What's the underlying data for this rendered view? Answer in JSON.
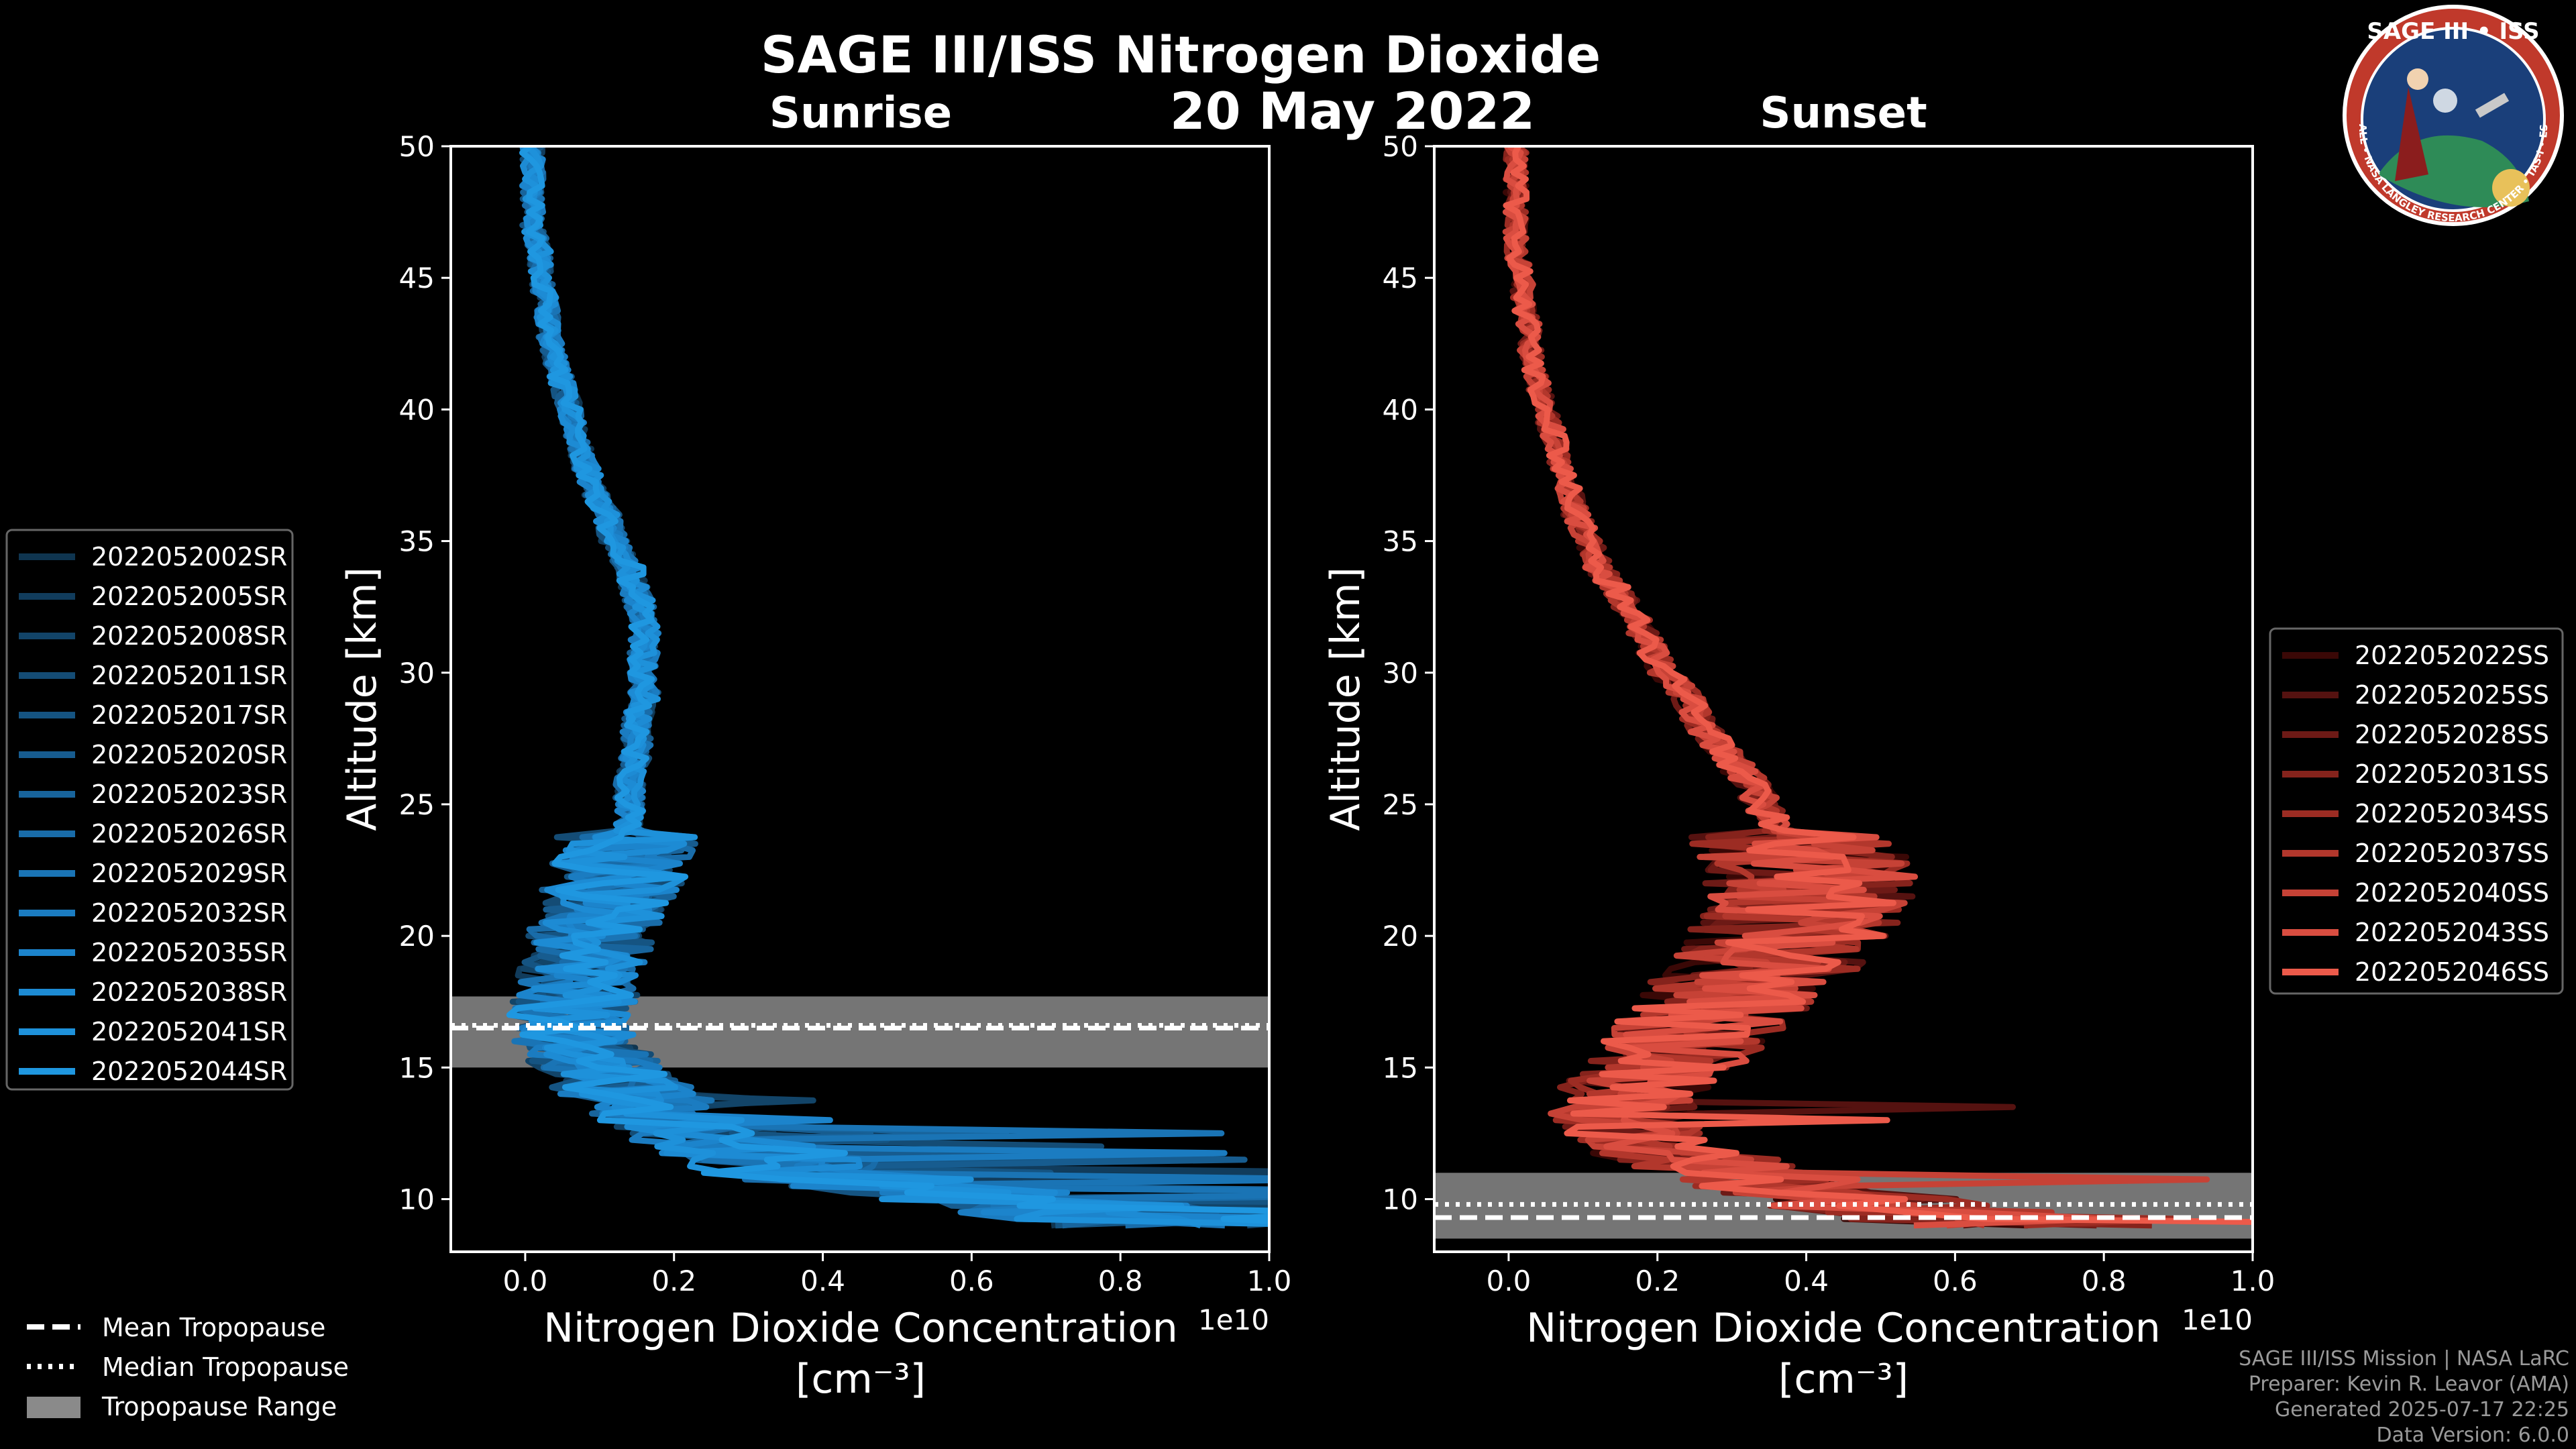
{
  "title": "SAGE III/ISS Nitrogen Dioxide",
  "date": "20 May 2022",
  "logo": {
    "name": "SAGE III • ISS",
    "fine_print": "BALL • NASA LANGLEY RESEARCH CENTER • TAS-I • ESA",
    "colors": {
      "ring": "#c0392b",
      "field": "#1a3f7a",
      "gold": "#e8c15a"
    }
  },
  "credits": [
    "SAGE III/ISS Mission | NASA LaRC",
    "Preparer: Kevin R. Leavor (AMA)",
    "Generated 2025-07-17 22:25",
    "Data Version: 6.0.0"
  ],
  "chart_data": [
    {
      "type": "line",
      "subtitle": "Sunrise",
      "xlabel": "Nitrogen Dioxide Concentration",
      "xunit": "[cm⁻³]",
      "x_scale_label": "1e10",
      "ylabel": "Altitude [km]",
      "xlim": [
        -0.1,
        1.0
      ],
      "ylim": [
        8,
        50
      ],
      "xticks": [
        "0.0",
        "0.2",
        "0.4",
        "0.6",
        "0.8",
        "1.0"
      ],
      "yticks": [
        "10",
        "15",
        "20",
        "25",
        "30",
        "35",
        "40",
        "45",
        "50"
      ],
      "color": "#1e90d6",
      "altitudes": [
        9,
        10,
        11,
        12,
        13,
        14,
        15,
        16,
        17,
        18,
        19,
        20,
        21,
        22,
        23,
        24,
        25,
        26,
        27,
        28,
        29,
        30,
        31,
        32,
        33,
        34,
        35,
        36,
        37,
        38,
        39,
        40,
        41,
        42,
        43,
        44,
        45,
        46,
        47,
        48,
        49,
        50
      ],
      "profile_mean": [
        0.95,
        0.65,
        0.38,
        0.28,
        0.2,
        0.14,
        0.1,
        0.07,
        0.06,
        0.07,
        0.08,
        0.09,
        0.1,
        0.12,
        0.13,
        0.14,
        0.14,
        0.14,
        0.15,
        0.15,
        0.16,
        0.16,
        0.16,
        0.16,
        0.15,
        0.14,
        0.12,
        0.11,
        0.09,
        0.08,
        0.07,
        0.06,
        0.05,
        0.04,
        0.03,
        0.03,
        0.02,
        0.02,
        0.01,
        0.01,
        0.01,
        0.01
      ],
      "series": [
        {
          "name": "2022052002SR",
          "color": "#0f3550"
        },
        {
          "name": "2022052005SR",
          "color": "#113c5c"
        },
        {
          "name": "2022052008SR",
          "color": "#124468"
        },
        {
          "name": "2022052011SR",
          "color": "#144c75"
        },
        {
          "name": "2022052017SR",
          "color": "#155482"
        },
        {
          "name": "2022052020SR",
          "color": "#175c8f"
        },
        {
          "name": "2022052023SR",
          "color": "#18649c"
        },
        {
          "name": "2022052026SR",
          "color": "#196ca9"
        },
        {
          "name": "2022052029SR",
          "color": "#1a74b5"
        },
        {
          "name": "2022052032SR",
          "color": "#1b7cc1"
        },
        {
          "name": "2022052035SR",
          "color": "#1c84cc"
        },
        {
          "name": "2022052038SR",
          "color": "#1d8bd4"
        },
        {
          "name": "2022052041SR",
          "color": "#1e91da"
        },
        {
          "name": "2022052044SR",
          "color": "#1f97e0"
        }
      ],
      "tropopause": {
        "mean": 16.5,
        "median": 16.6,
        "range": [
          15.0,
          17.7
        ]
      }
    },
    {
      "type": "line",
      "subtitle": "Sunset",
      "xlabel": "Nitrogen Dioxide Concentration",
      "xunit": "[cm⁻³]",
      "x_scale_label": "1e10",
      "ylabel": "Altitude [km]",
      "xlim": [
        -0.1,
        1.0
      ],
      "ylim": [
        8,
        50
      ],
      "xticks": [
        "0.0",
        "0.2",
        "0.4",
        "0.6",
        "0.8",
        "1.0"
      ],
      "yticks": [
        "10",
        "15",
        "20",
        "25",
        "30",
        "35",
        "40",
        "45",
        "50"
      ],
      "color": "#ec5a4a",
      "altitudes": [
        9,
        10,
        11,
        12,
        13,
        14,
        15,
        16,
        17,
        18,
        19,
        20,
        21,
        22,
        23,
        24,
        25,
        26,
        27,
        28,
        29,
        30,
        31,
        32,
        33,
        34,
        35,
        36,
        37,
        38,
        39,
        40,
        41,
        42,
        43,
        44,
        45,
        46,
        47,
        48,
        49,
        50
      ],
      "profile_mean": [
        0.7,
        0.45,
        0.3,
        0.2,
        0.15,
        0.16,
        0.2,
        0.24,
        0.27,
        0.31,
        0.35,
        0.38,
        0.4,
        0.41,
        0.4,
        0.37,
        0.34,
        0.32,
        0.29,
        0.26,
        0.24,
        0.21,
        0.19,
        0.17,
        0.15,
        0.12,
        0.11,
        0.09,
        0.08,
        0.07,
        0.06,
        0.05,
        0.04,
        0.03,
        0.03,
        0.02,
        0.02,
        0.01,
        0.01,
        0.01,
        0.01,
        0.01
      ],
      "series": [
        {
          "name": "2022052022SS",
          "color": "#3a0806"
        },
        {
          "name": "2022052025SS",
          "color": "#551210"
        },
        {
          "name": "2022052028SS",
          "color": "#6d1a16"
        },
        {
          "name": "2022052031SS",
          "color": "#85231c"
        },
        {
          "name": "2022052034SS",
          "color": "#9c2c23"
        },
        {
          "name": "2022052037SS",
          "color": "#b2372c"
        },
        {
          "name": "2022052040SS",
          "color": "#c64236"
        },
        {
          "name": "2022052043SS",
          "color": "#d94d40"
        },
        {
          "name": "2022052046SS",
          "color": "#ec5a4a"
        }
      ],
      "tropopause": {
        "mean": 9.3,
        "median": 9.8,
        "range": [
          8.5,
          11.0
        ]
      }
    }
  ],
  "tropopause_legend": {
    "mean": "Mean Tropopause",
    "median": "Median Tropopause",
    "range": "Tropopause Range",
    "range_color": "#8a8a8a"
  }
}
